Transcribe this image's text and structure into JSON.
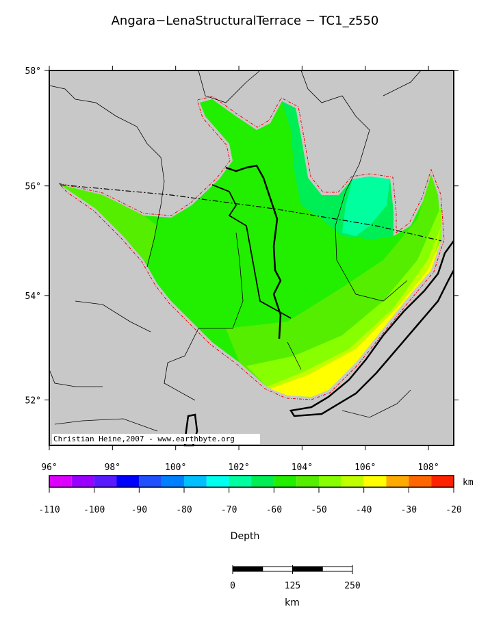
{
  "chart_data": {
    "type": "map",
    "title": "Angara−LenaStructuralTerrace − TC1_z550",
    "projection": "mercator",
    "xlim": [
      96,
      108.8
    ],
    "ylim": [
      51.1,
      58
    ],
    "xticks": [
      {
        "value": 96,
        "label": "96°"
      },
      {
        "value": 98,
        "label": "98°"
      },
      {
        "value": 100,
        "label": "100°"
      },
      {
        "value": 102,
        "label": "102°"
      },
      {
        "value": 104,
        "label": "104°"
      },
      {
        "value": 106,
        "label": "106°"
      },
      {
        "value": 108,
        "label": "108°"
      }
    ],
    "yticks": [
      {
        "value": 52,
        "label": "52°"
      },
      {
        "value": 54,
        "label": "54°"
      },
      {
        "value": 56,
        "label": "56°"
      },
      {
        "value": 58,
        "label": "58°"
      }
    ],
    "credit": "Christian Heine,2007 - www.earthbyte.org",
    "colorbar": {
      "label": "Depth",
      "unit": "km",
      "xlim": [
        -110,
        -20
      ],
      "bins": [
        -110,
        -105,
        -100,
        -95,
        -90,
        -85,
        -80,
        -75,
        -70,
        -65,
        -60,
        -55,
        -50,
        -45,
        -40,
        -35,
        -30,
        -25,
        -20
      ],
      "colors": [
        "#dd00ff",
        "#9a00ff",
        "#5a1aff",
        "#0000ff",
        "#1e50ff",
        "#0080ff",
        "#00c0ff",
        "#00ffee",
        "#00ff9f",
        "#00ee55",
        "#22ee00",
        "#55ee00",
        "#88ff00",
        "#c0ff00",
        "#ffff00",
        "#ffaa00",
        "#ff6600",
        "#ff2200"
      ],
      "ticks": [
        -110,
        -100,
        -90,
        -80,
        -70,
        -60,
        -50,
        -40,
        -30,
        -20
      ]
    },
    "scalebar": {
      "label": "km",
      "xlim": [
        0,
        250
      ],
      "ticks": [
        0,
        125,
        250
      ]
    }
  }
}
